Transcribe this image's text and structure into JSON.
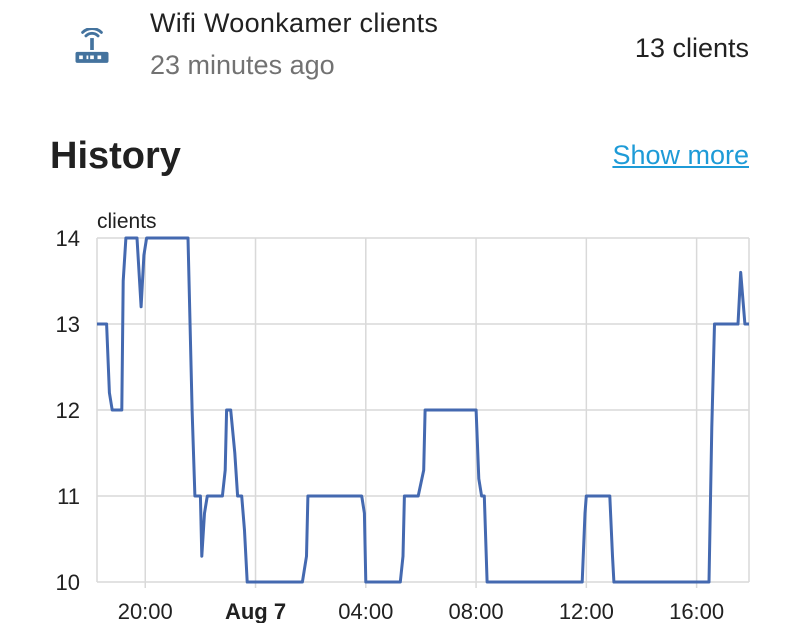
{
  "entity": {
    "name": "Wifi Woonkamer clients",
    "last_changed": "23 minutes ago",
    "state": "13 clients",
    "icon": "router-wireless-icon",
    "icon_color": "#44739e"
  },
  "history": {
    "title": "History",
    "show_more_label": "Show more",
    "show_more_color": "#1e9bd7"
  },
  "chart_data": {
    "type": "line",
    "ylabel": "clients",
    "ylim": [
      10,
      14
    ],
    "yticks": [
      10,
      11,
      12,
      13,
      14
    ],
    "xlim": [
      "Aug 6 18:15",
      "Aug 7 18:40"
    ],
    "xticks": [
      {
        "label": "20:00",
        "t": 20.0,
        "bold": false
      },
      {
        "label": "Aug 7",
        "t": 24.0,
        "bold": true
      },
      {
        "label": "04:00",
        "t": 28.0,
        "bold": false
      },
      {
        "label": "08:00",
        "t": 32.0,
        "bold": false
      },
      {
        "label": "12:00",
        "t": 36.0,
        "bold": false
      },
      {
        "label": "16:00",
        "t": 40.0,
        "bold": false
      }
    ],
    "line_color": "#4469b0",
    "grid": true,
    "series": [
      {
        "points": [
          [
            18.25,
            13
          ],
          [
            18.6,
            13
          ],
          [
            18.7,
            12.2
          ],
          [
            18.8,
            12
          ],
          [
            19.15,
            12
          ],
          [
            19.2,
            13.5
          ],
          [
            19.3,
            14
          ],
          [
            19.7,
            14
          ],
          [
            19.85,
            13.2
          ],
          [
            19.95,
            13.8
          ],
          [
            20.05,
            14
          ],
          [
            21.55,
            14
          ],
          [
            21.7,
            12.0
          ],
          [
            21.8,
            11
          ],
          [
            22.0,
            11
          ],
          [
            22.05,
            10.3
          ],
          [
            22.15,
            10.8
          ],
          [
            22.25,
            11
          ],
          [
            22.8,
            11
          ],
          [
            22.9,
            11.3
          ],
          [
            22.95,
            12
          ],
          [
            23.1,
            12
          ],
          [
            23.25,
            11.5
          ],
          [
            23.35,
            11
          ],
          [
            23.5,
            11
          ],
          [
            23.6,
            10.6
          ],
          [
            23.7,
            10
          ],
          [
            25.7,
            10
          ],
          [
            25.85,
            10.3
          ],
          [
            25.9,
            11
          ],
          [
            27.85,
            11
          ],
          [
            27.95,
            10.8
          ],
          [
            28.0,
            10
          ],
          [
            29.25,
            10
          ],
          [
            29.35,
            10.3
          ],
          [
            29.4,
            11
          ],
          [
            29.9,
            11
          ],
          [
            30.1,
            11.3
          ],
          [
            30.15,
            12
          ],
          [
            32.0,
            12
          ],
          [
            32.1,
            11.2
          ],
          [
            32.2,
            11
          ],
          [
            32.3,
            11
          ],
          [
            32.4,
            10
          ],
          [
            35.85,
            10
          ],
          [
            35.95,
            10.8
          ],
          [
            36.0,
            11
          ],
          [
            36.85,
            11
          ],
          [
            36.95,
            10.3
          ],
          [
            37.0,
            10
          ],
          [
            40.45,
            10
          ],
          [
            40.55,
            11.8
          ],
          [
            40.65,
            13
          ],
          [
            41.5,
            13
          ],
          [
            41.6,
            13.6
          ],
          [
            41.65,
            13.4
          ],
          [
            41.75,
            13
          ],
          [
            41.9,
            13
          ]
        ]
      }
    ]
  }
}
